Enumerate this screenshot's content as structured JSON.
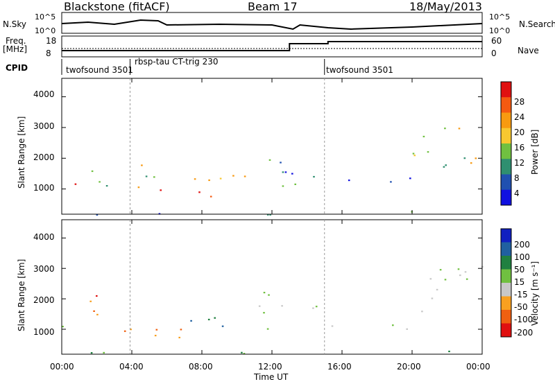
{
  "header": {
    "station": "Blackstone (fitACF)",
    "beam": "Beam 17",
    "date": "18/May/2013"
  },
  "noise_panel": {
    "left_label": "N.Sky",
    "right_label": "N.Search",
    "left_ticks": [
      "10^5",
      "10^0"
    ],
    "right_ticks": [
      "10^5",
      "10^0"
    ]
  },
  "freq_panel": {
    "left_label_line1": "Freq.",
    "left_label_line2": "[MHz]",
    "right_label": "Nave",
    "left_ticks": [
      "18",
      "8"
    ],
    "right_ticks": [
      "60",
      "0"
    ]
  },
  "cpid_panel": {
    "label": "CPID",
    "segments": [
      {
        "name": "twofsound 3501",
        "start_hour": 0,
        "end_hour": 3.9
      },
      {
        "name": "rbsp-tau CT-trig 230",
        "start_hour": 3.9,
        "end_hour": 15.0
      },
      {
        "name": "twofsound 3501",
        "start_hour": 15.0,
        "end_hour": 24
      }
    ]
  },
  "chart_data": [
    {
      "type": "heatmap",
      "title": "",
      "xlabel": "",
      "ylabel": "Slant Range [km]",
      "xlim": [
        0,
        24
      ],
      "ylim": [
        180,
        4600
      ],
      "yticks": [
        "1000",
        "2000",
        "3000",
        "4000"
      ],
      "colorbar": {
        "label": "Power [dB]",
        "ticks": [
          "28",
          "24",
          "20",
          "16",
          "12",
          "8",
          "4"
        ],
        "colors": [
          "#e01010",
          "#f55a10",
          "#f89a10",
          "#f8c830",
          "#70c040",
          "#2f8f70",
          "#2050b0",
          "#1010e0"
        ]
      },
      "regions": [
        {
          "t": [
            0.0,
            1.5
          ],
          "r": [
            900,
            1400
          ],
          "level": "high"
        },
        {
          "t": [
            1.5,
            4.0
          ],
          "r": [
            900,
            1700
          ],
          "level": "mid"
        },
        {
          "t": [
            4.0,
            10.8
          ],
          "r": [
            750,
            1100
          ],
          "level": "high"
        },
        {
          "t": [
            4.0,
            10.5
          ],
          "r": [
            1100,
            1850
          ],
          "level": "mid"
        },
        {
          "t": [
            11.0,
            14.5
          ],
          "r": [
            1000,
            2300
          ],
          "level": "low"
        },
        {
          "t": [
            15.0,
            20.0
          ],
          "r": [
            1000,
            1400
          ],
          "level": "low"
        },
        {
          "t": [
            20.0,
            24.0
          ],
          "r": [
            1600,
            3200
          ],
          "level": "mid"
        },
        {
          "t": [
            0.0,
            24.0
          ],
          "r": [
            180,
            300
          ],
          "level": "low"
        }
      ]
    },
    {
      "type": "heatmap",
      "title": "",
      "xlabel": "Time UT",
      "ylabel": "Slant Range [km]",
      "xlim": [
        0,
        24
      ],
      "ylim": [
        180,
        4600
      ],
      "xticks": [
        "00:00",
        "04:00",
        "08:00",
        "12:00",
        "16:00",
        "20:00",
        "00:00"
      ],
      "yticks": [
        "1000",
        "2000",
        "3000",
        "4000"
      ],
      "colorbar": {
        "label": "Velocity [m s⁻¹]",
        "ticks": [
          "200",
          "100",
          "50",
          "15",
          "-15",
          "-50",
          "-100",
          "-200"
        ],
        "colors": [
          "#1020c0",
          "#2060a0",
          "#208040",
          "#70c040",
          "#c8c8c8",
          "#f8a020",
          "#f06010",
          "#e01010"
        ]
      },
      "regions": [
        {
          "t": [
            0.0,
            1.5
          ],
          "r": [
            900,
            1400
          ],
          "level": "zero"
        },
        {
          "t": [
            1.5,
            4.0
          ],
          "r": [
            900,
            2300
          ],
          "level": "neg"
        },
        {
          "t": [
            4.0,
            10.5
          ],
          "r": [
            750,
            1100
          ],
          "level": "neg"
        },
        {
          "t": [
            4.0,
            10.0
          ],
          "r": [
            1100,
            1450
          ],
          "level": "pos"
        },
        {
          "t": [
            11.0,
            14.5
          ],
          "r": [
            1000,
            2300
          ],
          "level": "zero"
        },
        {
          "t": [
            15.0,
            20.0
          ],
          "r": [
            1000,
            1400
          ],
          "level": "zero"
        },
        {
          "t": [
            20.0,
            24.0
          ],
          "r": [
            1600,
            3200
          ],
          "level": "zero"
        },
        {
          "t": [
            0.0,
            24.0
          ],
          "r": [
            180,
            300
          ],
          "level": "slowpos"
        }
      ]
    }
  ]
}
